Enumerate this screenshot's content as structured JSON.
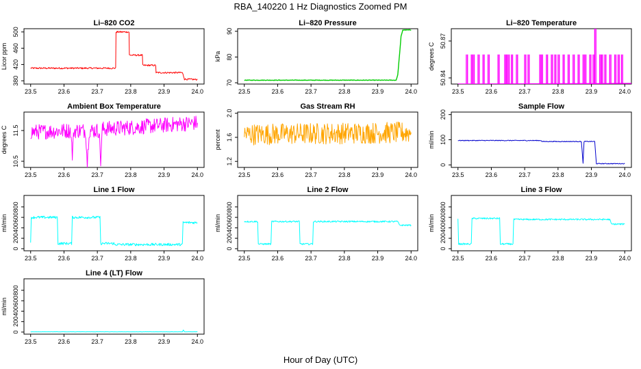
{
  "figure": {
    "title": "RBA_140220  1 Hz Diagnostics Zoomed PM",
    "xlabel": "Hour of Day (UTC)"
  },
  "chart_data": [
    {
      "type": "line",
      "title": "Li–820 CO2",
      "ylabel": "Licor ppm",
      "color": "#ff0000",
      "xlim": [
        23.48,
        24.02
      ],
      "ylim": [
        372,
        508
      ],
      "xticks": [
        23.5,
        23.6,
        23.7,
        23.8,
        23.9,
        24.0
      ],
      "xtick_labels": [
        "23.5",
        "23.6",
        "23.7",
        "23.8",
        "23.9",
        "24.0"
      ],
      "yticks": [
        380,
        420,
        460,
        500
      ],
      "ytick_labels": [
        "380",
        "420",
        "460",
        "500"
      ],
      "x": [
        23.5,
        23.755,
        23.756,
        23.795,
        23.796,
        23.835,
        23.836,
        23.875,
        23.876,
        23.955,
        23.956,
        23.96,
        23.961,
        24.0
      ],
      "y": [
        411,
        411,
        500,
        500,
        443,
        443,
        418,
        418,
        400,
        400,
        397,
        388,
        384,
        383
      ],
      "noise": 2
    },
    {
      "type": "line",
      "title": "Li–820 Pressure",
      "ylabel": "kPa",
      "color": "#00cc00",
      "xlim": [
        23.48,
        24.02
      ],
      "ylim": [
        69.5,
        91
      ],
      "xticks": [
        23.5,
        23.6,
        23.7,
        23.8,
        23.9,
        24.0
      ],
      "xtick_labels": [
        "23.5",
        "23.6",
        "23.7",
        "23.8",
        "23.9",
        "24.0"
      ],
      "yticks": [
        70,
        80,
        90
      ],
      "ytick_labels": [
        "70",
        "80",
        "90"
      ],
      "x": [
        23.5,
        23.955,
        23.96,
        23.97,
        23.975,
        24.0
      ],
      "y": [
        71,
        71,
        73,
        88,
        90.5,
        90.5
      ],
      "noise": 0.1
    },
    {
      "type": "line",
      "title": "Li–820 Temperature",
      "ylabel": "degrees C",
      "color": "#ff00ff",
      "xlim": [
        23.48,
        24.02
      ],
      "ylim": [
        50.835,
        50.88
      ],
      "xticks": [
        23.5,
        23.6,
        23.7,
        23.8,
        23.9,
        24.0
      ],
      "xtick_labels": [
        "23.5",
        "23.6",
        "23.7",
        "23.8",
        "23.9",
        "24.0"
      ],
      "yticks": [
        50.84,
        50.87
      ],
      "ytick_labels": [
        "50.84",
        "50.87"
      ],
      "x": [
        23.5,
        23.525,
        23.54,
        23.545,
        23.56,
        23.575,
        23.59,
        23.62,
        23.64,
        23.645,
        23.65,
        23.66,
        23.675,
        23.7,
        23.71,
        23.745,
        23.75,
        23.765,
        23.78,
        23.79,
        23.8,
        23.815,
        23.83,
        23.845,
        23.86,
        23.875,
        23.88,
        23.895,
        23.905,
        23.91,
        23.925,
        23.93,
        23.94,
        23.955,
        23.97,
        23.98,
        23.99
      ],
      "y": [
        50.835,
        50.859,
        50.859,
        50.859,
        50.859,
        50.859,
        50.859,
        50.859,
        50.859,
        50.859,
        50.859,
        50.859,
        50.859,
        50.859,
        50.859,
        50.859,
        50.859,
        50.859,
        50.859,
        50.859,
        50.859,
        50.859,
        50.859,
        50.859,
        50.859,
        50.859,
        50.859,
        50.859,
        50.859,
        50.88,
        50.859,
        50.859,
        50.859,
        50.859,
        50.859,
        50.859,
        50.859
      ],
      "spikes": true
    },
    {
      "type": "line",
      "title": "Ambient Box Temperature",
      "ylabel": "degrees C",
      "color": "#ff00ff",
      "xlim": [
        23.48,
        24.02
      ],
      "ylim": [
        10.3,
        12.1
      ],
      "xticks": [
        23.5,
        23.6,
        23.7,
        23.8,
        23.9,
        24.0
      ],
      "xtick_labels": [
        "23.5",
        "23.6",
        "23.7",
        "23.8",
        "23.9",
        "24.0"
      ],
      "yticks": [
        10.5,
        11.5
      ],
      "ytick_labels": [
        "10.5",
        "11.5"
      ],
      "x": [
        23.5,
        23.62,
        23.625,
        23.63,
        23.665,
        23.67,
        23.675,
        23.705,
        23.71,
        23.715,
        23.8,
        24.0
      ],
      "y": [
        11.45,
        11.5,
        10.7,
        11.5,
        11.5,
        10.4,
        11.5,
        11.5,
        10.5,
        11.55,
        11.6,
        11.75
      ],
      "noise": 0.25
    },
    {
      "type": "line",
      "title": "Gas Stream RH",
      "ylabel": "percent",
      "color": "#ffa500",
      "xlim": [
        23.48,
        24.02
      ],
      "ylim": [
        1.1,
        2.02
      ],
      "xticks": [
        23.5,
        23.6,
        23.7,
        23.8,
        23.9,
        24.0
      ],
      "xtick_labels": [
        "23.5",
        "23.6",
        "23.7",
        "23.8",
        "23.9",
        "24.0"
      ],
      "yticks": [
        1.2,
        1.6,
        2.0
      ],
      "ytick_labels": [
        "1.2",
        "1.6",
        "2.0"
      ],
      "x": [
        23.5,
        24.0
      ],
      "y": [
        1.65,
        1.68
      ],
      "noise": 0.18
    },
    {
      "type": "line",
      "title": "Sample Flow",
      "ylabel": "ml/min",
      "color": "#0000cc",
      "xlim": [
        23.48,
        24.02
      ],
      "ylim": [
        -10,
        210
      ],
      "xticks": [
        23.5,
        23.6,
        23.7,
        23.8,
        23.9,
        24.0
      ],
      "xtick_labels": [
        "23.5",
        "23.6",
        "23.7",
        "23.8",
        "23.9",
        "24.0"
      ],
      "yticks": [
        0,
        100,
        200
      ],
      "ytick_labels": [
        "0",
        "100",
        "200"
      ],
      "x": [
        23.5,
        23.75,
        23.751,
        23.87,
        23.875,
        23.878,
        23.88,
        23.91,
        23.915,
        23.92,
        24.0
      ],
      "y": [
        97,
        97,
        93,
        93,
        5,
        93,
        93,
        93,
        5,
        5,
        5
      ],
      "noise": 1.5
    },
    {
      "type": "line",
      "title": "Line 1 Flow",
      "ylabel": "ml/min",
      "color": "#00ffff",
      "xlim": [
        23.48,
        24.02
      ],
      "ylim": [
        -40,
        1020
      ],
      "xticks": [
        23.5,
        23.6,
        23.7,
        23.8,
        23.9,
        24.0
      ],
      "xtick_labels": [
        "23.5",
        "23.6",
        "23.7",
        "23.8",
        "23.9",
        "24.0"
      ],
      "yticks": [
        0,
        200,
        400,
        600,
        800
      ],
      "ytick_labels": [
        "0",
        "200",
        "400",
        "600",
        "800"
      ],
      "x": [
        23.5,
        23.502,
        23.58,
        23.582,
        23.623,
        23.625,
        23.708,
        23.71,
        23.75,
        23.751,
        23.955,
        23.957,
        24.0
      ],
      "y": [
        100,
        600,
        600,
        100,
        100,
        600,
        600,
        100,
        100,
        80,
        80,
        500,
        500
      ],
      "noise": 25
    },
    {
      "type": "line",
      "title": "Line 2 Flow",
      "ylabel": "ml/min",
      "color": "#00ffff",
      "xlim": [
        23.48,
        24.02
      ],
      "ylim": [
        -40,
        1020
      ],
      "xticks": [
        23.5,
        23.6,
        23.7,
        23.8,
        23.9,
        24.0
      ],
      "xtick_labels": [
        "23.5",
        "23.6",
        "23.7",
        "23.8",
        "23.9",
        "24.0"
      ],
      "yticks": [
        0,
        200,
        400,
        600,
        800
      ],
      "ytick_labels": [
        "0",
        "200",
        "400",
        "600",
        "800"
      ],
      "x": [
        23.5,
        23.54,
        23.542,
        23.58,
        23.582,
        23.665,
        23.667,
        23.705,
        23.707,
        23.96,
        23.965,
        24.0
      ],
      "y": [
        520,
        520,
        90,
        90,
        520,
        520,
        90,
        90,
        520,
        520,
        450,
        450
      ],
      "noise": 15
    },
    {
      "type": "line",
      "title": "Line 3 Flow",
      "ylabel": "ml/min",
      "color": "#00ffff",
      "xlim": [
        23.48,
        24.02
      ],
      "ylim": [
        -40,
        1020
      ],
      "xticks": [
        23.5,
        23.6,
        23.7,
        23.8,
        23.9,
        24.0
      ],
      "xtick_labels": [
        "23.5",
        "23.6",
        "23.7",
        "23.8",
        "23.9",
        "24.0"
      ],
      "yticks": [
        0,
        200,
        400,
        600,
        800
      ],
      "ytick_labels": [
        "0",
        "200",
        "400",
        "600",
        "800"
      ],
      "x": [
        23.5,
        23.502,
        23.54,
        23.542,
        23.625,
        23.627,
        23.665,
        23.667,
        23.955,
        23.96,
        24.0
      ],
      "y": [
        580,
        90,
        90,
        580,
        580,
        90,
        90,
        560,
        560,
        470,
        470
      ],
      "noise": 15
    },
    {
      "type": "line",
      "title": "Line 4 (LT) Flow",
      "ylabel": "ml/min",
      "color": "#00ffff",
      "xlim": [
        23.48,
        24.02
      ],
      "ylim": [
        -40,
        1020
      ],
      "xticks": [
        23.5,
        23.6,
        23.7,
        23.8,
        23.9,
        24.0
      ],
      "xtick_labels": [
        "23.5",
        "23.6",
        "23.7",
        "23.8",
        "23.9",
        "24.0"
      ],
      "yticks": [
        0,
        200,
        400,
        600,
        800
      ],
      "ytick_labels": [
        "0",
        "200",
        "400",
        "600",
        "800"
      ],
      "x": [
        23.5,
        23.955,
        23.958,
        23.961,
        24.0
      ],
      "y": [
        5,
        5,
        40,
        5,
        5
      ],
      "noise": 2
    }
  ]
}
